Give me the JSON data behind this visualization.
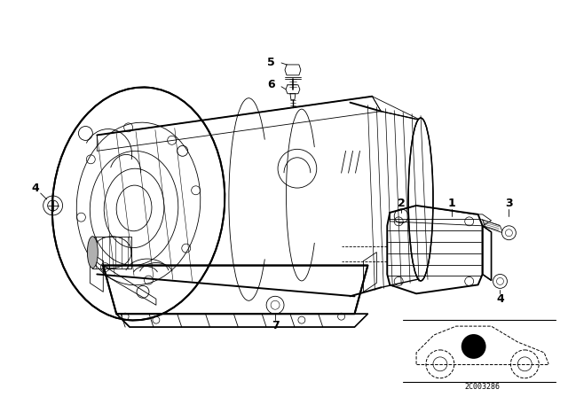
{
  "background_color": "#ffffff",
  "figure_width": 6.4,
  "figure_height": 4.48,
  "dpi": 100,
  "callout_code": "2C003286",
  "line_color": "#000000",
  "label_color": "#000000",
  "lw_main": 1.0,
  "lw_thin": 0.6,
  "lw_thick": 1.4
}
